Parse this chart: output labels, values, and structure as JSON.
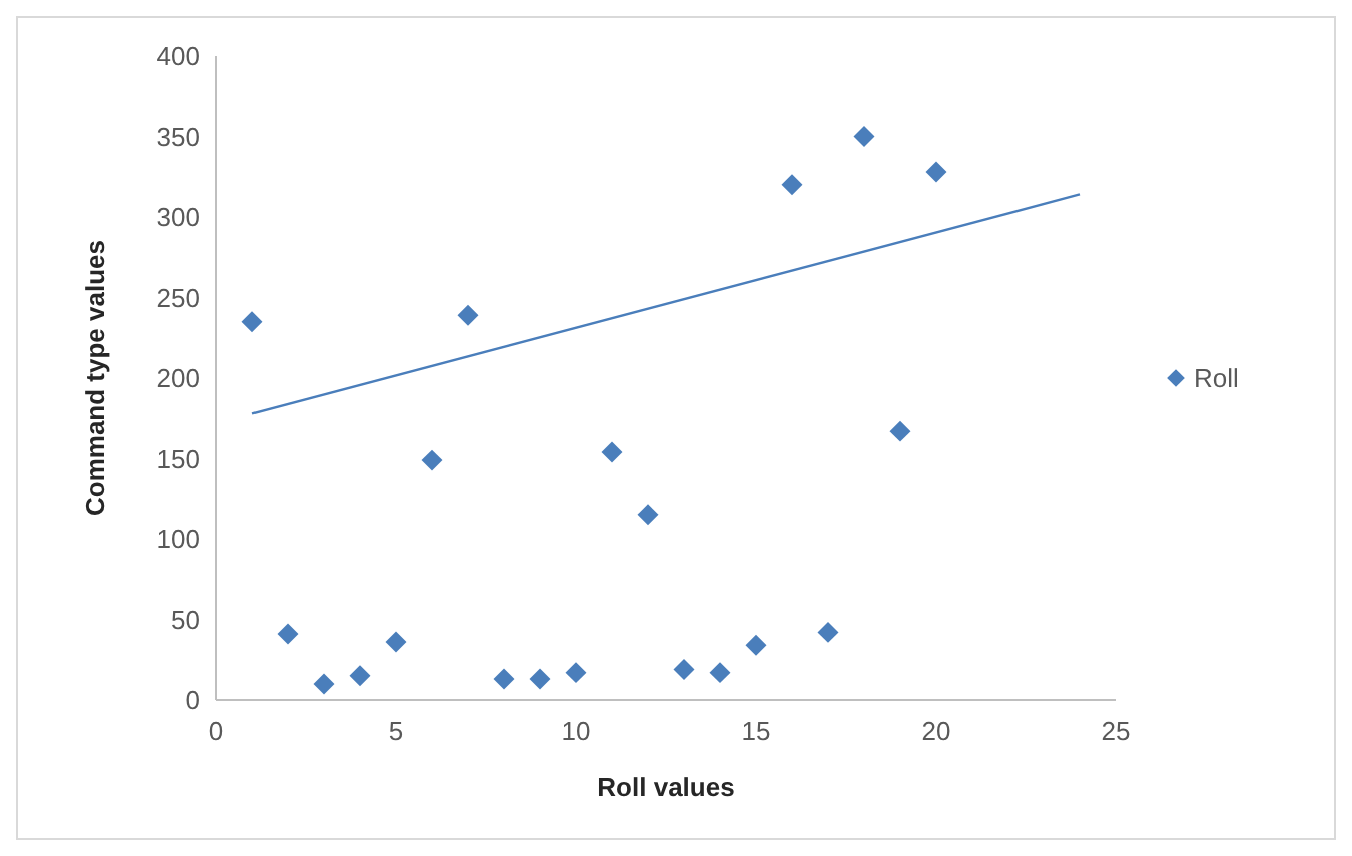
{
  "chart_data": {
    "type": "scatter",
    "xlabel": "Roll values",
    "ylabel": "Command type values",
    "x": [
      1,
      2,
      3,
      4,
      5,
      6,
      7,
      8,
      9,
      10,
      11,
      12,
      13,
      14,
      15,
      16,
      17,
      18,
      19,
      20
    ],
    "series": [
      {
        "name": "Roll",
        "marker": "diamond",
        "color": "#4a7ebb",
        "values": [
          235,
          41,
          10,
          15,
          36,
          149,
          239,
          13,
          13,
          17,
          154,
          115,
          19,
          17,
          34,
          320,
          42,
          350,
          167,
          328
        ]
      },
      {
        "type": "line",
        "marker": "none",
        "color": "#4a7ebb",
        "x": [
          1,
          24
        ],
        "values": [
          178,
          314
        ]
      }
    ],
    "xlim": [
      0,
      25
    ],
    "xticks": [
      0,
      5,
      10,
      15,
      20,
      25
    ],
    "ylim": [
      0,
      400
    ],
    "yticks": [
      0,
      50,
      100,
      150,
      200,
      250,
      300,
      350,
      400
    ],
    "grid": false,
    "legend": "right"
  }
}
